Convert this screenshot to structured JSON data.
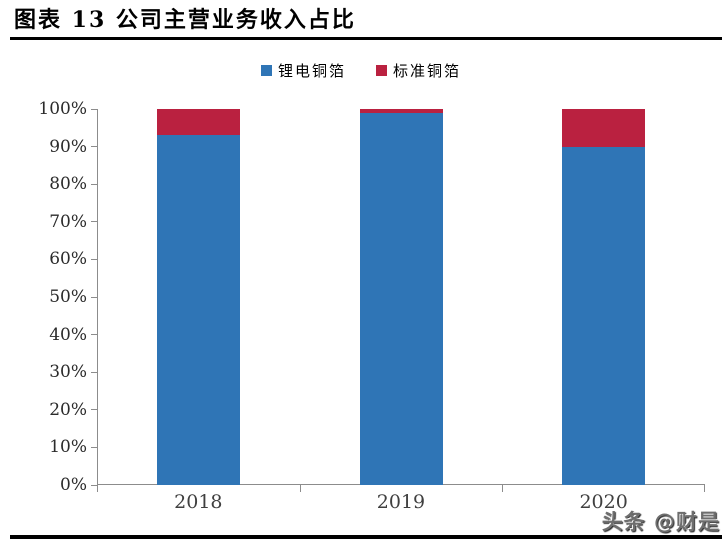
{
  "page": {
    "title": "图表 13 公司主营业务收入占比",
    "watermark": "头条 @财是"
  },
  "chart_data": {
    "type": "bar",
    "stacked": true,
    "title": "图表 13 公司主营业务收入占比",
    "categories": [
      "2018",
      "2019",
      "2020"
    ],
    "series": [
      {
        "name": "锂电铜箔",
        "color": "#2F75B6",
        "values": [
          93,
          99,
          90
        ]
      },
      {
        "name": "标准铜箔",
        "color": "#BA2140",
        "values": [
          7,
          1,
          10
        ]
      }
    ],
    "value_unit": "%",
    "ylim": [
      0,
      100
    ],
    "ytick_step": 10,
    "yticklabels": [
      "0%",
      "10%",
      "20%",
      "30%",
      "40%",
      "50%",
      "60%",
      "70%",
      "80%",
      "90%",
      "100%"
    ],
    "xticklabels": [
      "2018",
      "2019",
      "2020"
    ],
    "legend_position": "top-center",
    "grid": false,
    "axis_color": "#8c8c8c",
    "tick_label_color": "#2b2b2b"
  }
}
